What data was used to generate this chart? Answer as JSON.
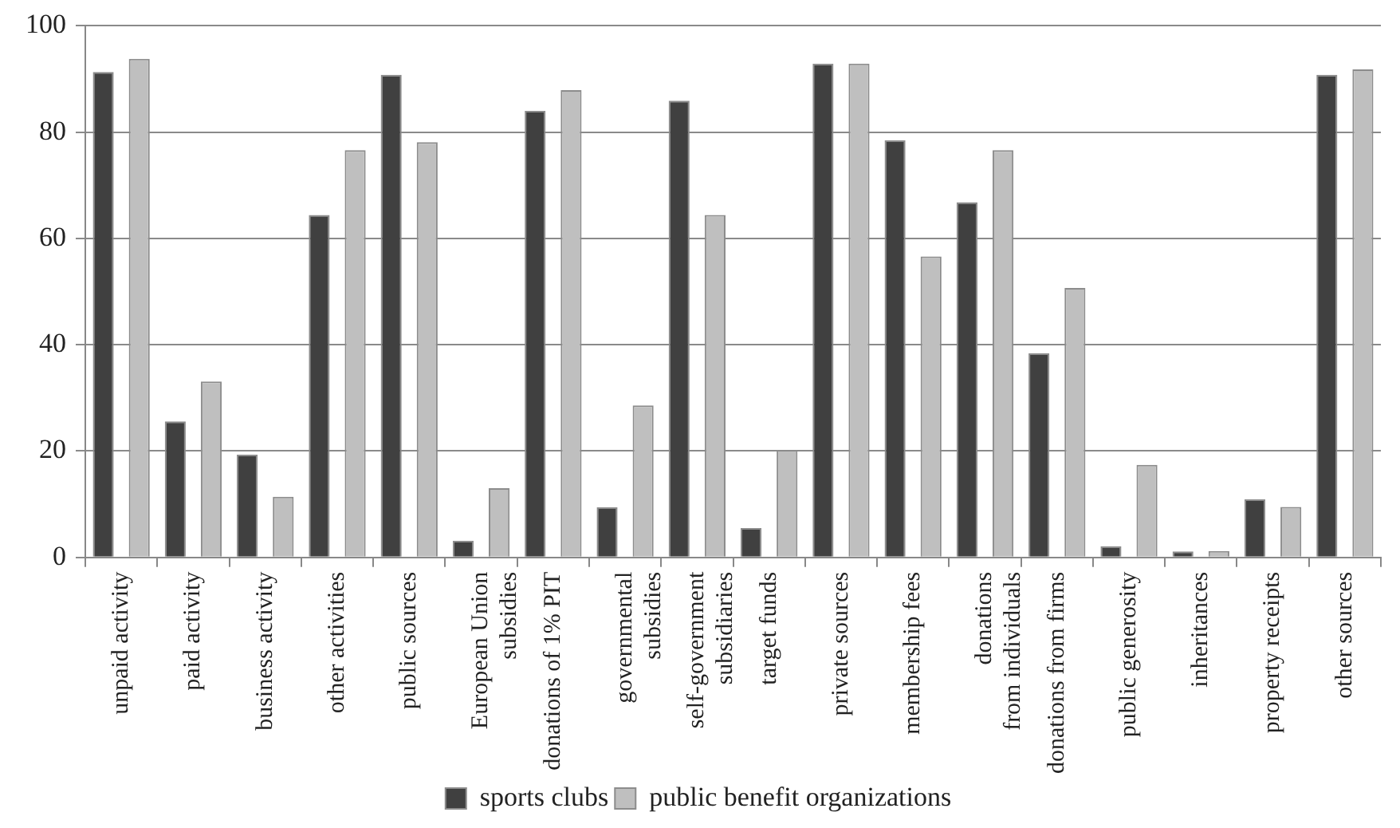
{
  "chart_data": {
    "type": "bar",
    "categories": [
      "unpaid activity",
      "paid activity",
      "business activity",
      "other activities",
      "public sources",
      "European Union\nsubsidies",
      "donations of 1% PIT",
      "governmental\nsubsidies",
      "self-government\nsubsidiaries",
      "target funds",
      "private sources",
      "membership fees",
      "donations\nfrom individuals",
      "donations from firms",
      "public generosity",
      "inheritances",
      "property receipts",
      "other sources"
    ],
    "series": [
      {
        "name": "sports clubs",
        "color": "#404040",
        "values": [
          91.3,
          25.6,
          19.3,
          64.4,
          90.8,
          3.1,
          84.0,
          9.4,
          85.9,
          5.5,
          92.9,
          78.5,
          66.8,
          38.4,
          2.1,
          1.1,
          10.9,
          90.8
        ]
      },
      {
        "name": "public benefit organizations",
        "color": "#bfbfbf",
        "values": [
          93.8,
          33.1,
          11.4,
          76.6,
          78.1,
          13.0,
          87.9,
          28.6,
          64.4,
          20.2,
          92.9,
          56.6,
          76.6,
          50.7,
          17.4,
          1.2,
          9.5,
          91.8
        ]
      }
    ],
    "ylim": [
      0,
      100
    ],
    "yticks": [
      0,
      20,
      40,
      60,
      80,
      100
    ],
    "grid": "y",
    "legend": "bottom"
  }
}
